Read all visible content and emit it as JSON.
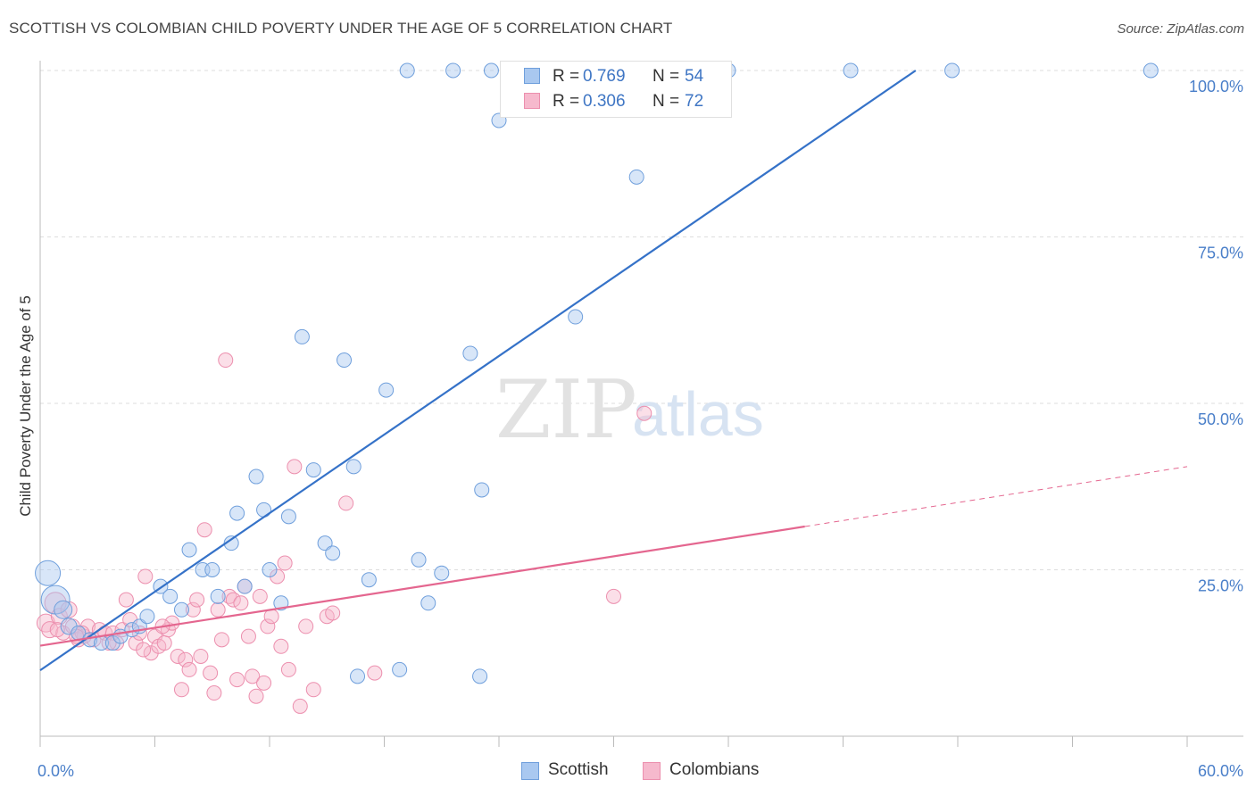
{
  "title": "SCOTTISH VS COLOMBIAN CHILD POVERTY UNDER THE AGE OF 5 CORRELATION CHART",
  "source": "Source: ZipAtlas.com",
  "watermark": {
    "zip": "ZIP",
    "atlas": "atlas"
  },
  "legend": {
    "rows": [
      {
        "r_label": "R =",
        "r_value": "0.769",
        "n_label": "N =",
        "n_value": "54"
      },
      {
        "r_label": "R =",
        "r_value": "0.306",
        "n_label": "N =",
        "n_value": "72"
      }
    ]
  },
  "bottom_legend": {
    "scottish": "Scottish",
    "colombians": "Colombians"
  },
  "colors": {
    "scottish_fill": "#a9c8f0",
    "scottish_stroke": "#6f9fdc",
    "scottish_line": "#3572c8",
    "colombian_fill": "#f6b9cd",
    "colombian_stroke": "#ec8fae",
    "colombian_line": "#e4668f",
    "tick_label": "#4a7fc9",
    "grid": "#dddddd"
  },
  "chart_data": {
    "type": "scatter",
    "title": "SCOTTISH VS COLOMBIAN CHILD POVERTY UNDER THE AGE OF 5 CORRELATION CHART",
    "xlabel": "",
    "ylabel": "Child Poverty Under the Age of 5",
    "xlim": [
      0,
      60
    ],
    "ylim": [
      0,
      100
    ],
    "x_tick_labels": [
      "0.0%",
      "60.0%"
    ],
    "y_ticks": [
      25,
      50,
      75,
      100
    ],
    "y_tick_labels": [
      "25.0%",
      "50.0%",
      "75.0%",
      "100.0%"
    ],
    "grid": true,
    "legend_position": "top-center",
    "series": [
      {
        "name": "Scottish",
        "R": 0.769,
        "N": 54,
        "trend": {
          "x": [
            0,
            45.8
          ],
          "y": [
            9.9,
            100
          ]
        },
        "points": [
          [
            0.4,
            24.5,
            14
          ],
          [
            0.8,
            20.5,
            16
          ],
          [
            1.2,
            19,
            10
          ],
          [
            1.5,
            16.5,
            9
          ],
          [
            2.0,
            15.5,
            8
          ],
          [
            2.6,
            14.5,
            8
          ],
          [
            3.2,
            14,
            8
          ],
          [
            3.8,
            14,
            8
          ],
          [
            4.2,
            15,
            8
          ],
          [
            4.8,
            16,
            8
          ],
          [
            5.2,
            16.5,
            8
          ],
          [
            5.6,
            18,
            8
          ],
          [
            6.3,
            22.5,
            8
          ],
          [
            6.8,
            21,
            8
          ],
          [
            7.4,
            19,
            8
          ],
          [
            7.8,
            28,
            8
          ],
          [
            8.5,
            25,
            8
          ],
          [
            9.0,
            25,
            8
          ],
          [
            9.3,
            21,
            8
          ],
          [
            10.0,
            29,
            8
          ],
          [
            10.3,
            33.5,
            8
          ],
          [
            10.7,
            22.5,
            8
          ],
          [
            11.3,
            39,
            8
          ],
          [
            11.7,
            34,
            8
          ],
          [
            12.0,
            25,
            8
          ],
          [
            12.6,
            20,
            8
          ],
          [
            13.0,
            33,
            8
          ],
          [
            13.7,
            60,
            8
          ],
          [
            14.3,
            40,
            8
          ],
          [
            14.9,
            29,
            8
          ],
          [
            15.3,
            27.5,
            8
          ],
          [
            15.9,
            56.5,
            8
          ],
          [
            16.4,
            40.5,
            8
          ],
          [
            16.6,
            9,
            8
          ],
          [
            17.2,
            23.5,
            8
          ],
          [
            18.1,
            52,
            8
          ],
          [
            18.8,
            10,
            8
          ],
          [
            19.2,
            100,
            8
          ],
          [
            19.8,
            26.5,
            8
          ],
          [
            20.3,
            20,
            8
          ],
          [
            21.0,
            24.5,
            8
          ],
          [
            21.6,
            100,
            8
          ],
          [
            22.5,
            57.5,
            8
          ],
          [
            23.0,
            9,
            8
          ],
          [
            23.1,
            37,
            8
          ],
          [
            23.6,
            100,
            8
          ],
          [
            24.0,
            92.5,
            8
          ],
          [
            28.0,
            63,
            8
          ],
          [
            31.2,
            84,
            8
          ],
          [
            36.0,
            100,
            8
          ],
          [
            42.4,
            100,
            8
          ],
          [
            47.7,
            100,
            8
          ],
          [
            58.1,
            100,
            8
          ],
          [
            27.8,
            100,
            8
          ]
        ]
      },
      {
        "name": "Colombians",
        "R": 0.306,
        "N": 72,
        "trend": {
          "x": [
            0,
            40
          ],
          "y": [
            13.6,
            31.5
          ]
        },
        "trend_dashed": {
          "x": [
            40,
            60
          ],
          "y": [
            31.5,
            40.5
          ]
        },
        "points": [
          [
            0.3,
            17,
            10
          ],
          [
            0.5,
            16,
            9
          ],
          [
            0.8,
            20,
            12
          ],
          [
            1.0,
            18,
            9
          ],
          [
            1.2,
            15.5,
            8
          ],
          [
            1.5,
            19,
            9
          ],
          [
            1.7,
            16.5,
            8
          ],
          [
            2.0,
            14.5,
            8
          ],
          [
            2.3,
            15,
            8
          ],
          [
            2.5,
            16.5,
            8
          ],
          [
            2.8,
            14.5,
            8
          ],
          [
            3.1,
            16,
            8
          ],
          [
            3.4,
            15.5,
            8
          ],
          [
            3.8,
            15.5,
            8
          ],
          [
            4.0,
            14,
            8
          ],
          [
            4.3,
            16,
            8
          ],
          [
            4.5,
            20.5,
            8
          ],
          [
            4.7,
            17.5,
            8
          ],
          [
            5.0,
            14,
            8
          ],
          [
            5.2,
            15.5,
            8
          ],
          [
            5.5,
            24,
            8
          ],
          [
            5.8,
            12.5,
            8
          ],
          [
            6.0,
            15,
            8
          ],
          [
            6.2,
            13.5,
            8
          ],
          [
            6.5,
            14,
            8
          ],
          [
            6.7,
            16,
            8
          ],
          [
            6.9,
            17,
            8
          ],
          [
            7.2,
            12,
            8
          ],
          [
            7.4,
            7,
            8
          ],
          [
            7.6,
            11.5,
            8
          ],
          [
            7.8,
            10,
            8
          ],
          [
            8.0,
            19,
            8
          ],
          [
            8.2,
            20.5,
            8
          ],
          [
            8.4,
            12,
            8
          ],
          [
            8.6,
            31,
            8
          ],
          [
            8.9,
            9.5,
            8
          ],
          [
            9.1,
            6.5,
            8
          ],
          [
            9.3,
            19,
            8
          ],
          [
            9.5,
            14.5,
            8
          ],
          [
            9.7,
            56.5,
            8
          ],
          [
            9.9,
            21,
            8
          ],
          [
            10.1,
            20.5,
            8
          ],
          [
            10.3,
            8.5,
            8
          ],
          [
            10.5,
            20,
            8
          ],
          [
            10.7,
            22.5,
            8
          ],
          [
            10.9,
            15,
            8
          ],
          [
            11.1,
            9,
            8
          ],
          [
            11.3,
            6,
            8
          ],
          [
            11.5,
            21,
            8
          ],
          [
            11.7,
            8,
            8
          ],
          [
            11.9,
            16.5,
            8
          ],
          [
            12.1,
            18,
            8
          ],
          [
            12.4,
            24,
            8
          ],
          [
            12.6,
            13.5,
            8
          ],
          [
            12.8,
            26,
            8
          ],
          [
            13.0,
            10,
            8
          ],
          [
            13.3,
            40.5,
            8
          ],
          [
            13.6,
            4.5,
            8
          ],
          [
            13.9,
            16.5,
            8
          ],
          [
            14.3,
            7,
            8
          ],
          [
            15.0,
            18,
            8
          ],
          [
            15.3,
            18.5,
            8
          ],
          [
            16.0,
            35,
            8
          ],
          [
            17.5,
            9.5,
            8
          ],
          [
            30.0,
            21,
            8
          ],
          [
            31.6,
            48.5,
            8
          ],
          [
            2.2,
            15.5,
            8
          ],
          [
            3.6,
            14,
            8
          ],
          [
            5.4,
            13,
            8
          ],
          [
            6.4,
            16.5,
            8
          ],
          [
            0.9,
            16,
            8
          ],
          [
            1.9,
            15,
            8
          ]
        ]
      }
    ]
  }
}
